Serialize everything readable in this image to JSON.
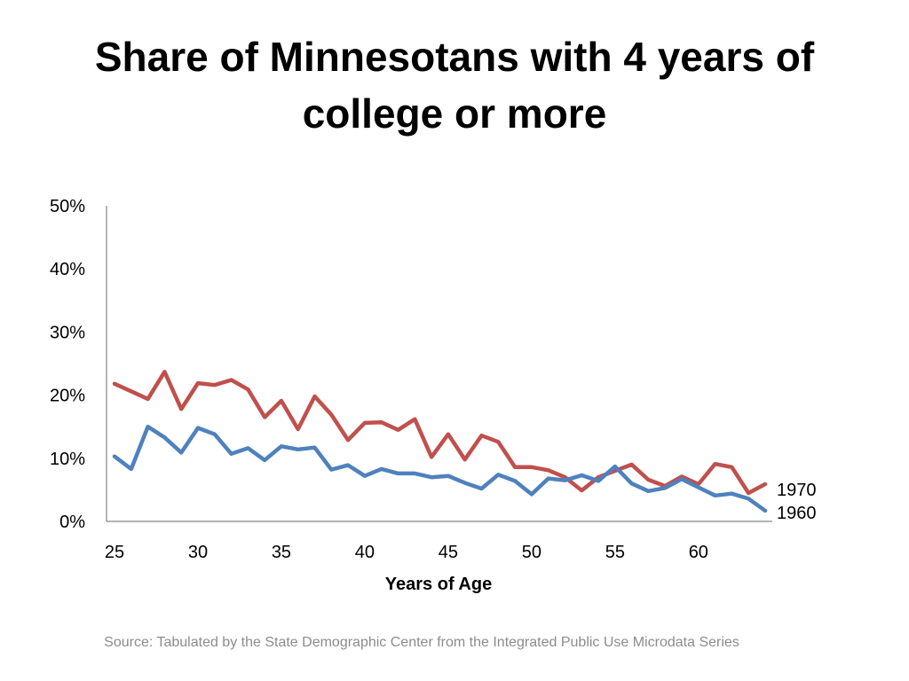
{
  "chart_data": {
    "type": "line",
    "title": "Share of Minnesotans with 4 years of college or more",
    "xlabel": "Years of Age",
    "ylabel": "",
    "x": [
      25,
      26,
      27,
      28,
      29,
      30,
      31,
      32,
      33,
      34,
      35,
      36,
      37,
      38,
      39,
      40,
      41,
      42,
      43,
      44,
      45,
      46,
      47,
      48,
      49,
      50,
      51,
      52,
      53,
      54,
      55,
      56,
      57,
      58,
      59,
      60,
      61,
      62,
      63,
      64
    ],
    "xlim": [
      25,
      64
    ],
    "ylim": [
      0,
      50
    ],
    "xticks": [
      "25",
      "30",
      "35",
      "40",
      "45",
      "50",
      "55",
      "60"
    ],
    "yticks": [
      "0%",
      "10%",
      "20%",
      "30%",
      "40%",
      "50%"
    ],
    "grid": false,
    "legend": "end-of-line labels",
    "series": [
      {
        "name": "1970",
        "color": "#c0504d",
        "values": [
          21.8,
          20.6,
          19.4,
          23.7,
          17.8,
          21.9,
          21.6,
          22.4,
          20.9,
          16.5,
          19.1,
          14.6,
          19.8,
          16.9,
          12.9,
          15.6,
          15.7,
          14.5,
          16.2,
          10.2,
          13.8,
          9.8,
          13.6,
          12.6,
          8.6,
          8.6,
          8.1,
          7.0,
          4.9,
          7.0,
          8.0,
          9.0,
          6.6,
          5.6,
          7.1,
          5.9,
          9.1,
          8.6,
          4.5,
          5.9
        ]
      },
      {
        "name": "1960",
        "color": "#4f81bd",
        "values": [
          10.3,
          8.3,
          15.0,
          13.3,
          10.9,
          14.8,
          13.8,
          10.7,
          11.6,
          9.7,
          11.9,
          11.4,
          11.7,
          8.2,
          8.9,
          7.2,
          8.3,
          7.6,
          7.6,
          7.0,
          7.2,
          6.1,
          5.2,
          7.4,
          6.4,
          4.3,
          6.8,
          6.5,
          7.3,
          6.4,
          8.7,
          6.0,
          4.8,
          5.3,
          6.7,
          5.4,
          4.1,
          4.4,
          3.6,
          1.7
        ]
      }
    ],
    "source": "Source: Tabulated by the State Demographic Center from the Integrated Public Use Microdata Series"
  }
}
